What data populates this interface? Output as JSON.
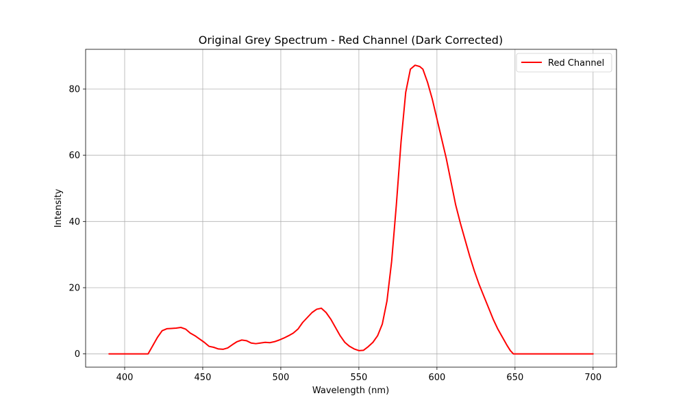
{
  "chart_data": {
    "type": "line",
    "title": "Original Grey Spectrum - Red Channel (Dark Corrected)",
    "xlabel": "Wavelength (nm)",
    "ylabel": "Intensity",
    "xlim": [
      375,
      715
    ],
    "ylim": [
      -4,
      92
    ],
    "xticks": [
      400,
      450,
      500,
      550,
      600,
      650,
      700
    ],
    "yticks": [
      0,
      20,
      40,
      60,
      80
    ],
    "grid": true,
    "legend_position": "top-right",
    "series": [
      {
        "name": "Red Channel",
        "color": "#ff0000",
        "x": [
          390,
          400,
          410,
          415,
          418,
          421,
          424,
          427,
          430,
          433,
          436,
          439,
          442,
          445,
          448,
          451,
          454,
          457,
          460,
          463,
          466,
          469,
          472,
          475,
          478,
          481,
          484,
          487,
          490,
          493,
          496,
          499,
          502,
          505,
          508,
          511,
          514,
          517,
          520,
          523,
          526,
          529,
          532,
          535,
          538,
          541,
          544,
          547,
          550,
          553,
          556,
          559,
          562,
          565,
          568,
          571,
          574,
          577,
          580,
          583,
          586,
          589,
          591,
          594,
          597,
          600,
          603,
          606,
          609,
          612,
          615,
          618,
          621,
          624,
          627,
          630,
          633,
          636,
          639,
          642,
          645,
          647,
          649,
          651,
          660,
          670,
          680,
          690,
          700
        ],
        "y": [
          0,
          0,
          0,
          0,
          2.5,
          5.0,
          7.0,
          7.6,
          7.7,
          7.8,
          8.0,
          7.5,
          6.3,
          5.5,
          4.5,
          3.5,
          2.3,
          2.0,
          1.5,
          1.4,
          1.8,
          2.8,
          3.7,
          4.2,
          4.0,
          3.3,
          3.1,
          3.3,
          3.5,
          3.4,
          3.7,
          4.2,
          4.8,
          5.5,
          6.3,
          7.5,
          9.5,
          11.0,
          12.5,
          13.5,
          13.8,
          12.5,
          10.5,
          8.0,
          5.5,
          3.5,
          2.3,
          1.5,
          1.0,
          1.1,
          2.2,
          3.5,
          5.5,
          9.0,
          16.0,
          28.0,
          45.0,
          64.0,
          79.0,
          86.0,
          87.2,
          86.8,
          86.0,
          82.0,
          77.0,
          71.0,
          65.0,
          59.0,
          52.0,
          45.0,
          39.5,
          34.5,
          29.5,
          25.0,
          21.0,
          17.5,
          14.0,
          10.5,
          7.5,
          5.0,
          2.5,
          1.0,
          0,
          0,
          0,
          0,
          0,
          0,
          0
        ]
      }
    ]
  }
}
